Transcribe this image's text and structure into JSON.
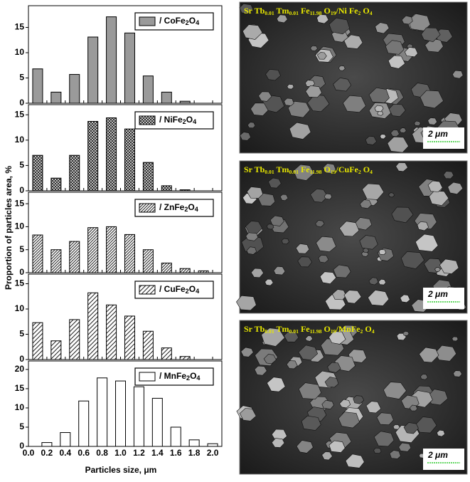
{
  "chart_data": [
    {
      "type": "bar",
      "legend": [
        "/ CoFe",
        "2",
        "O",
        "4"
      ],
      "fill": "solid",
      "color": "#9a9a9a",
      "ylabel": "Proportion of particles area, %",
      "x": [
        0.1,
        0.3,
        0.5,
        0.7,
        0.9,
        1.1,
        1.3,
        1.5,
        1.7
      ],
      "values": [
        6.8,
        2.2,
        5.7,
        13.1,
        17.1,
        13.9,
        5.4,
        2.2,
        0.4
      ],
      "xlim": [
        0,
        2.1
      ],
      "ylim": [
        0,
        19.3
      ],
      "yticks": [
        0,
        5,
        10,
        15
      ]
    },
    {
      "type": "bar",
      "legend": [
        "/ NiFe",
        "2",
        "O",
        "4"
      ],
      "fill": "crosshatch",
      "color": "#333333",
      "x": [
        0.1,
        0.3,
        0.5,
        0.7,
        0.9,
        1.1,
        1.3,
        1.5,
        1.7
      ],
      "values": [
        7.0,
        2.5,
        7.0,
        13.7,
        14.4,
        12.2,
        5.6,
        1.0,
        0.2
      ],
      "xlim": [
        0,
        2.1
      ],
      "ylim": [
        0,
        17
      ],
      "yticks": [
        0,
        5,
        10,
        15
      ]
    },
    {
      "type": "bar",
      "legend": [
        "/ ZnFe",
        "2",
        "O",
        "4"
      ],
      "fill": "dense-diagonal",
      "color": "#333333",
      "x": [
        0.1,
        0.3,
        0.5,
        0.7,
        0.9,
        1.1,
        1.3,
        1.5,
        1.7,
        1.9
      ],
      "values": [
        8.2,
        5.0,
        6.8,
        9.8,
        10.0,
        8.3,
        5.0,
        2.1,
        0.9,
        0.4
      ],
      "xlim": [
        0,
        2.1
      ],
      "ylim": [
        0,
        17.5
      ],
      "yticks": [
        0,
        5,
        10,
        15
      ]
    },
    {
      "type": "bar",
      "legend": [
        "/ CuFe",
        "2",
        "O",
        "4"
      ],
      "fill": "diagonal",
      "color": "#333333",
      "x": [
        0.1,
        0.3,
        0.5,
        0.7,
        0.9,
        1.1,
        1.3,
        1.5,
        1.7
      ],
      "values": [
        7.3,
        3.7,
        7.9,
        13.2,
        10.8,
        8.6,
        5.6,
        2.3,
        0.6
      ],
      "xlim": [
        0,
        2.1
      ],
      "ylim": [
        0,
        16.9
      ],
      "yticks": [
        0,
        5,
        10,
        15
      ]
    },
    {
      "type": "bar",
      "legend": [
        "/ MnFe",
        "2",
        "O",
        "4"
      ],
      "fill": "empty",
      "color": "#ffffff",
      "xlabel": "Particles size, μm",
      "x": [
        0.2,
        0.4,
        0.6,
        0.8,
        1.0,
        1.2,
        1.4,
        1.6,
        1.8,
        2.0
      ],
      "values": [
        1.0,
        3.6,
        11.8,
        17.8,
        17.0,
        15.5,
        12.5,
        5.0,
        1.7,
        0.7
      ],
      "xlim": [
        0,
        2.1
      ],
      "ylim": [
        0,
        22.2
      ],
      "yticks": [
        0,
        5,
        10,
        15,
        20
      ],
      "xticks": [
        {
          "value": 0,
          "label": "0.0"
        },
        0.2,
        0.4,
        0.6,
        0.8,
        {
          "value": 1,
          "label": "1.0"
        },
        1.2,
        1.4,
        1.6,
        1.8,
        {
          "value": 2,
          "label": "2.0"
        }
      ]
    }
  ],
  "images": [
    {
      "caption": [
        "Sr Tb",
        "0.01",
        " Tm",
        "0.01",
        " Fe",
        "11.98",
        " O",
        "19",
        "/Ni Fe",
        "2",
        " O",
        "4"
      ],
      "scale": "2 μm"
    },
    {
      "caption": [
        "Sr Tb",
        "0.01",
        " Tm",
        "0.01",
        " Fe",
        "11.98",
        " O",
        "19",
        "/CuFe",
        "2",
        " O",
        "4"
      ],
      "scale": "2 μm"
    },
    {
      "caption": [
        "Sr Tb",
        "0.01",
        " Tm",
        "0.01",
        " Fe",
        "11.98",
        " O",
        "19",
        "/MnFe",
        "2",
        " O",
        "4"
      ],
      "scale": "2 μm"
    }
  ]
}
